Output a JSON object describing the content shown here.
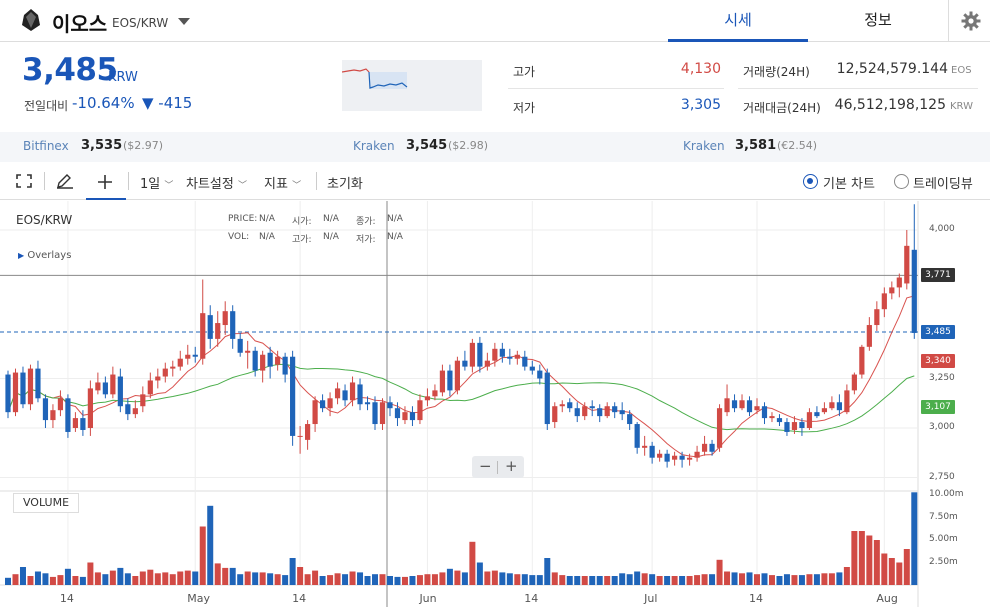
{
  "header": {
    "coin_name": "이오스",
    "coin_pair": "EOS/KRW",
    "tabs": [
      {
        "label": "시세"
      },
      {
        "label": "정보"
      }
    ]
  },
  "summary": {
    "price": "3,485",
    "price_unit": "KRW",
    "change_label": "전일대비",
    "change_pct": "-10.64%",
    "change_abs": "▼ -415",
    "high_label": "고가",
    "high_value": "4,130",
    "low_label": "저가",
    "low_value": "3,305",
    "volume_label": "거래량(24H)",
    "volume_value": "12,524,579.144",
    "volume_unit": "EOS",
    "amount_label": "거래대금(24H)",
    "amount_value": "46,512,198,125",
    "amount_unit": "KRW"
  },
  "exchanges": [
    {
      "name": "Bitfinex",
      "price": "3,535",
      "usd": "($2.97)"
    },
    {
      "name": "Kraken",
      "price": "3,545",
      "usd": "($2.98)"
    },
    {
      "name": "Kraken",
      "price": "3,581",
      "usd": "(€2.54)"
    }
  ],
  "toolbar": {
    "interval": "1일",
    "chart_settings": "차트설정",
    "indicators": "지표",
    "reset": "초기화",
    "basic_chart": "기본 차트",
    "tradingview": "트레이딩뷰"
  },
  "chart_legend": {
    "price_lbl": "PRICE:",
    "price_val": "N/A",
    "open_lbl": "시가:",
    "open_val": "N/A",
    "close_lbl": "종가:",
    "close_val": "N/A",
    "vol_lbl": "VOL:",
    "vol_val": "N/A",
    "high_lbl": "고가:",
    "high_val": "N/A",
    "low_lbl": "저가:",
    "low_val": "N/A",
    "overlays": "Overlays",
    "volume_label": "VOLUME",
    "zoom_out": "−",
    "zoom_in": "+"
  },
  "colors": {
    "up": "#d14a45",
    "down": "#1f64b8",
    "ma_short": "#d9534f",
    "ma_long": "#4cae4c",
    "accent": "#1a56b8"
  },
  "chart_data": {
    "type": "candlestick",
    "title": "EOS/KRW",
    "x_ticks": [
      "14",
      "May",
      "14",
      "Jun",
      "14",
      "Jul",
      "14",
      "Aug"
    ],
    "x_tick_days": [
      14,
      31,
      45,
      62,
      76,
      92,
      106,
      123
    ],
    "price_ylim": [
      2700,
      4150
    ],
    "price_ticks": [
      "4,000",
      "3,250",
      "3,000",
      "2,750"
    ],
    "price_tick_values": [
      4000,
      3250,
      3000,
      2750
    ],
    "volume_ticks": [
      "10.00m",
      "7.50m",
      "5.00m",
      "2.50m"
    ],
    "volume_tick_values": [
      10,
      7.5,
      5,
      2.5
    ],
    "volume_unit": "m",
    "tags": [
      {
        "label": "3,771",
        "value": 3771,
        "color": "#333"
      },
      {
        "label": "3,485",
        "value": 3485,
        "color": "#1f64b8"
      },
      {
        "label": "3,340",
        "value": 3340,
        "color": "#d14a45"
      },
      {
        "label": "3,107",
        "value": 3107,
        "color": "#4cae4c"
      }
    ],
    "current_price": 3485,
    "candles": [
      [
        3270,
        3080,
        3290,
        3050,
        0.8
      ],
      [
        3080,
        3280,
        3300,
        3060,
        1.2
      ],
      [
        3280,
        3120,
        3310,
        3100,
        2.0
      ],
      [
        3120,
        3300,
        3320,
        3090,
        1.0
      ],
      [
        3300,
        3150,
        3340,
        3130,
        1.5
      ],
      [
        3150,
        3040,
        3170,
        3000,
        1.3
      ],
      [
        3040,
        3090,
        3120,
        3000,
        0.9
      ],
      [
        3090,
        3150,
        3190,
        3060,
        1.1
      ],
      [
        3150,
        2980,
        3170,
        2950,
        1.8
      ],
      [
        3000,
        3050,
        3080,
        2980,
        1.0
      ],
      [
        3050,
        2990,
        3090,
        2960,
        0.9
      ],
      [
        3000,
        3200,
        3240,
        2960,
        2.5
      ],
      [
        3190,
        3230,
        3280,
        3170,
        1.4
      ],
      [
        3230,
        3170,
        3260,
        3150,
        1.2
      ],
      [
        3170,
        3270,
        3310,
        3150,
        1.6
      ],
      [
        3260,
        3110,
        3300,
        3080,
        1.9
      ],
      [
        3120,
        3070,
        3150,
        3040,
        1.3
      ],
      [
        3070,
        3100,
        3140,
        3050,
        1.0
      ],
      [
        3110,
        3170,
        3210,
        3080,
        1.5
      ],
      [
        3170,
        3240,
        3280,
        3150,
        1.7
      ],
      [
        3240,
        3260,
        3300,
        3200,
        1.3
      ],
      [
        3260,
        3300,
        3330,
        3230,
        1.4
      ],
      [
        3300,
        3310,
        3340,
        3260,
        1.2
      ],
      [
        3310,
        3350,
        3390,
        3290,
        1.5
      ],
      [
        3350,
        3370,
        3420,
        3320,
        1.6
      ],
      [
        3370,
        3360,
        3410,
        3330,
        1.5
      ],
      [
        3350,
        3580,
        3750,
        3320,
        6.5
      ],
      [
        3570,
        3450,
        3620,
        3400,
        8.8
      ],
      [
        3450,
        3530,
        3590,
        3410,
        2.4
      ],
      [
        3520,
        3590,
        3640,
        3470,
        1.9
      ],
      [
        3590,
        3450,
        3620,
        3400,
        1.9
      ],
      [
        3450,
        3380,
        3480,
        3360,
        1.2
      ],
      [
        3380,
        3390,
        3440,
        3300,
        1.5
      ],
      [
        3390,
        3290,
        3410,
        3260,
        1.4
      ],
      [
        3290,
        3370,
        3390,
        3230,
        1.4
      ],
      [
        3380,
        3310,
        3410,
        3250,
        1.3
      ],
      [
        3320,
        3360,
        3390,
        3290,
        1.2
      ],
      [
        3360,
        3270,
        3380,
        3230,
        1.1
      ],
      [
        3360,
        2960,
        3390,
        2910,
        3.0
      ],
      [
        2960,
        2960,
        3010,
        2870,
        2.0
      ],
      [
        2940,
        3020,
        3040,
        2890,
        1.2
      ],
      [
        3020,
        3140,
        3160,
        2980,
        1.6
      ],
      [
        3140,
        3100,
        3170,
        3080,
        1.0
      ],
      [
        3100,
        3150,
        3180,
        3060,
        1.1
      ],
      [
        3150,
        3200,
        3230,
        3120,
        1.3
      ],
      [
        3190,
        3140,
        3220,
        3110,
        1.2
      ],
      [
        3140,
        3230,
        3260,
        3110,
        1.5
      ],
      [
        3220,
        3120,
        3250,
        3090,
        1.4
      ],
      [
        3130,
        3120,
        3160,
        3090,
        1.0
      ],
      [
        3130,
        3020,
        3160,
        2990,
        1.2
      ],
      [
        3020,
        3130,
        3150,
        2990,
        1.2
      ],
      [
        3130,
        3100,
        3160,
        3060,
        1.0
      ],
      [
        3100,
        3050,
        3130,
        3010,
        0.9
      ],
      [
        3040,
        3080,
        3110,
        3020,
        0.9
      ],
      [
        3080,
        3040,
        3110,
        3010,
        1.0
      ],
      [
        3040,
        3140,
        3170,
        3020,
        1.1
      ],
      [
        3140,
        3160,
        3200,
        3110,
        1.2
      ],
      [
        3160,
        3190,
        3220,
        3140,
        1.2
      ],
      [
        3180,
        3290,
        3320,
        3160,
        1.4
      ],
      [
        3290,
        3190,
        3320,
        3160,
        1.8
      ],
      [
        3190,
        3340,
        3360,
        3170,
        1.6
      ],
      [
        3340,
        3310,
        3390,
        3290,
        1.4
      ],
      [
        3310,
        3430,
        3450,
        3280,
        4.8
      ],
      [
        3430,
        3310,
        3460,
        3280,
        2.5
      ],
      [
        3310,
        3340,
        3380,
        3290,
        1.5
      ],
      [
        3340,
        3400,
        3430,
        3310,
        1.6
      ],
      [
        3400,
        3360,
        3430,
        3330,
        1.4
      ],
      [
        3360,
        3350,
        3400,
        3320,
        1.3
      ],
      [
        3350,
        3370,
        3390,
        3320,
        1.2
      ],
      [
        3360,
        3310,
        3390,
        3290,
        1.2
      ],
      [
        3310,
        3290,
        3340,
        3270,
        1.1
      ],
      [
        3290,
        3250,
        3320,
        3220,
        1.1
      ],
      [
        3280,
        3020,
        3300,
        2990,
        3.0
      ],
      [
        3030,
        3110,
        3130,
        3000,
        1.4
      ],
      [
        3110,
        3120,
        3140,
        3080,
        1.1
      ],
      [
        3130,
        3100,
        3150,
        3080,
        1.0
      ],
      [
        3100,
        3060,
        3130,
        3030,
        1.0
      ],
      [
        3060,
        3110,
        3130,
        3040,
        1.0
      ],
      [
        3110,
        3100,
        3140,
        3060,
        1.0
      ],
      [
        3100,
        3060,
        3120,
        3030,
        1.0
      ],
      [
        3060,
        3110,
        3130,
        3050,
        1.0
      ],
      [
        3110,
        3080,
        3130,
        3050,
        1.0
      ],
      [
        3090,
        3070,
        3130,
        3040,
        1.3
      ],
      [
        3070,
        3020,
        3090,
        2990,
        1.2
      ],
      [
        3020,
        2900,
        3030,
        2870,
        1.5
      ],
      [
        2900,
        2910,
        2960,
        2860,
        1.3
      ],
      [
        2910,
        2850,
        2930,
        2820,
        1.2
      ],
      [
        2850,
        2870,
        2890,
        2830,
        1.0
      ],
      [
        2870,
        2830,
        2890,
        2800,
        1.0
      ],
      [
        2840,
        2860,
        2880,
        2810,
        1.0
      ],
      [
        2860,
        2840,
        2880,
        2800,
        1.0
      ],
      [
        2840,
        2850,
        2870,
        2810,
        1.0
      ],
      [
        2850,
        2880,
        2910,
        2830,
        1.1
      ],
      [
        2880,
        2920,
        2960,
        2860,
        1.2
      ],
      [
        2920,
        2880,
        2940,
        2860,
        1.2
      ],
      [
        2900,
        3100,
        3120,
        2880,
        2.8
      ],
      [
        3080,
        3150,
        3220,
        3060,
        1.5
      ],
      [
        3140,
        3100,
        3170,
        3080,
        1.4
      ],
      [
        3100,
        3140,
        3170,
        3090,
        1.3
      ],
      [
        3140,
        3080,
        3160,
        3060,
        1.4
      ],
      [
        3090,
        3110,
        3150,
        3070,
        1.2
      ],
      [
        3110,
        3050,
        3130,
        3020,
        1.3
      ],
      [
        3050,
        3060,
        3080,
        3030,
        1.1
      ],
      [
        3050,
        3030,
        3070,
        3010,
        1.0
      ],
      [
        3030,
        2980,
        3050,
        2960,
        1.2
      ],
      [
        2990,
        3030,
        3060,
        2970,
        1.1
      ],
      [
        3030,
        3000,
        3050,
        2960,
        1.1
      ],
      [
        3000,
        3080,
        3100,
        2990,
        1.2
      ],
      [
        3080,
        3060,
        3110,
        3050,
        1.2
      ],
      [
        3080,
        3100,
        3130,
        3070,
        1.3
      ],
      [
        3100,
        3130,
        3160,
        3090,
        1.3
      ],
      [
        3130,
        3090,
        3170,
        3060,
        1.4
      ],
      [
        3080,
        3190,
        3220,
        3070,
        2.0
      ],
      [
        3190,
        3270,
        3280,
        3170,
        6.0
      ],
      [
        3270,
        3410,
        3420,
        3250,
        6.0
      ],
      [
        3410,
        3520,
        3560,
        3390,
        5.5
      ],
      [
        3520,
        3600,
        3640,
        3490,
        5.0
      ],
      [
        3600,
        3680,
        3710,
        3560,
        3.5
      ],
      [
        3680,
        3710,
        3740,
        3650,
        3.0
      ],
      [
        3710,
        3760,
        3780,
        3660,
        2.5
      ],
      [
        3730,
        3920,
        4000,
        3700,
        4.0
      ],
      [
        3900,
        3480,
        4130,
        3450,
        10.3
      ]
    ]
  }
}
